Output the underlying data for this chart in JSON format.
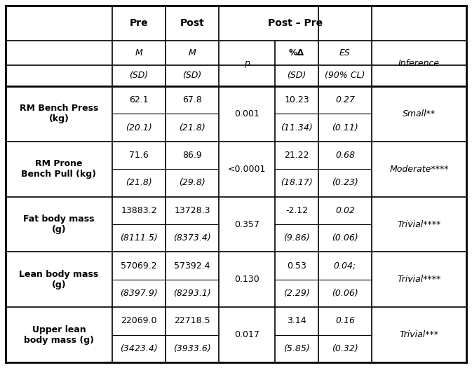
{
  "rows": [
    {
      "label": "RM Bench Press\n(kg)",
      "pre_m": "62.1",
      "post_m": "67.8",
      "p": "0.001",
      "pct_delta": "10.23",
      "es": "0.27",
      "inference": "Small**",
      "pre_sd": "(20.1)",
      "post_sd": "(21.8)",
      "pct_delta_sd": "(11.34)",
      "es_cl": "(0.11)"
    },
    {
      "label": "RM Prone\nBench Pull (kg)",
      "pre_m": "71.6",
      "post_m": "86.9",
      "p": "<0.0001",
      "pct_delta": "21.22",
      "es": "0.68",
      "inference": "Moderate****",
      "pre_sd": "(21.8)",
      "post_sd": "(29.8)",
      "pct_delta_sd": "(18.17)",
      "es_cl": "(0.23)"
    },
    {
      "label": "Fat body mass\n(g)",
      "pre_m": "13883.2",
      "post_m": "13728.3",
      "p": "0.357",
      "pct_delta": "-2.12",
      "es": "0.02",
      "inference": "Trivial****",
      "pre_sd": "(8111.5)",
      "post_sd": "(8373.4)",
      "pct_delta_sd": "(9.86)",
      "es_cl": "(0.06)"
    },
    {
      "label": "Lean body mass\n(g)",
      "pre_m": "57069.2",
      "post_m": "57392.4",
      "p": "0.130",
      "pct_delta": "0.53",
      "es": "0.04;",
      "inference": "Trivial****",
      "pre_sd": "(8397.9)",
      "post_sd": "(8293.1)",
      "pct_delta_sd": "(2.29)",
      "es_cl": "(0.06)"
    },
    {
      "label": "Upper lean\nbody mass (g)",
      "pre_m": "22069.0",
      "post_m": "22718.5",
      "p": "0.017",
      "pct_delta": "3.14",
      "es": "0.16",
      "inference": "Trivial***",
      "pre_sd": "(3423.4)",
      "post_sd": "(3933.6)",
      "pct_delta_sd": "(5.85)",
      "es_cl": "(0.32)"
    }
  ],
  "background_color": "#ffffff",
  "border_color": "#000000"
}
